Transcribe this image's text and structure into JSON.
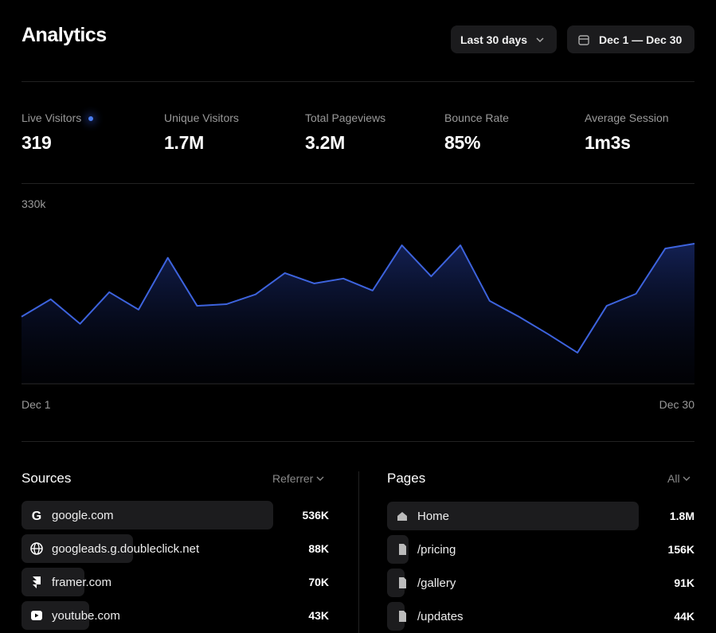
{
  "header": {
    "title": "Analytics",
    "range_button": "Last 30 days",
    "date_button": "Dec 1 — Dec 30"
  },
  "stats": [
    {
      "label": "Live Visitors",
      "value": "319"
    },
    {
      "label": "Unique Visitors",
      "value": "1.7M"
    },
    {
      "label": "Total Pageviews",
      "value": "3.2M"
    },
    {
      "label": "Bounce Rate",
      "value": "85%"
    },
    {
      "label": "Average Session",
      "value": "1m3s"
    }
  ],
  "chart_data": {
    "type": "area",
    "categories": [
      "Dec 1",
      null,
      null,
      null,
      null,
      null,
      null,
      null,
      null,
      null,
      null,
      null,
      null,
      null,
      null,
      null,
      null,
      null,
      null,
      null,
      null,
      null,
      null,
      "Dec 30"
    ],
    "values": [
      123000,
      155000,
      110000,
      168000,
      136000,
      231000,
      143000,
      146000,
      164000,
      203000,
      184000,
      193000,
      171000,
      254000,
      197000,
      254000,
      152000,
      123000,
      91000,
      57000,
      143000,
      165000,
      248000,
      257000
    ],
    "ylim": [
      0,
      330000
    ],
    "yticks": [
      {
        "value": 330000,
        "label": "330k"
      }
    ],
    "color": "#3d63dd"
  },
  "sources": {
    "title": "Sources",
    "filter": "Referrer",
    "labels": [
      "google.com",
      "googleads.g.doubleclick.net",
      "framer.com",
      "youtube.com"
    ],
    "values": [
      536000,
      88000,
      70000,
      43000
    ],
    "value_labels": [
      "536K",
      "88K",
      "70K",
      "43K"
    ]
  },
  "pages": {
    "title": "Pages",
    "filter": "All",
    "labels": [
      "Home",
      "/pricing",
      "/gallery",
      "/updates"
    ],
    "values": [
      1800000,
      156000,
      91000,
      44000
    ],
    "value_labels": [
      "1.8M",
      "156K",
      "91K",
      "44K"
    ]
  }
}
